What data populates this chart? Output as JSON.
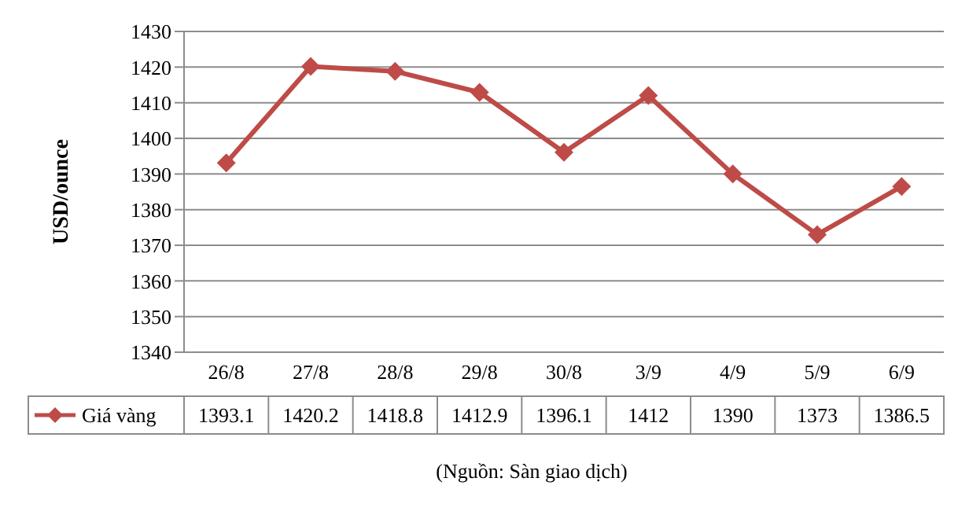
{
  "chart_data": {
    "type": "line",
    "ylabel": "USD/ounce",
    "categories": [
      "26/8",
      "27/8",
      "28/8",
      "29/8",
      "30/8",
      "3/9",
      "4/9",
      "5/9",
      "6/9"
    ],
    "series": [
      {
        "name": "Giá vàng",
        "color": "#be4b48",
        "values": [
          1393.1,
          1420.2,
          1418.8,
          1412.9,
          1396.1,
          1412,
          1390,
          1373,
          1386.5
        ]
      }
    ],
    "ylim": [
      1340,
      1430
    ],
    "yticks": [
      1340,
      1350,
      1360,
      1370,
      1380,
      1390,
      1400,
      1410,
      1420,
      1430
    ],
    "grid": "y",
    "legend": "bottom",
    "marker": "diamond",
    "data_labels": true,
    "annotations": [
      "(Nguồn: Sàn giao dịch)"
    ]
  }
}
